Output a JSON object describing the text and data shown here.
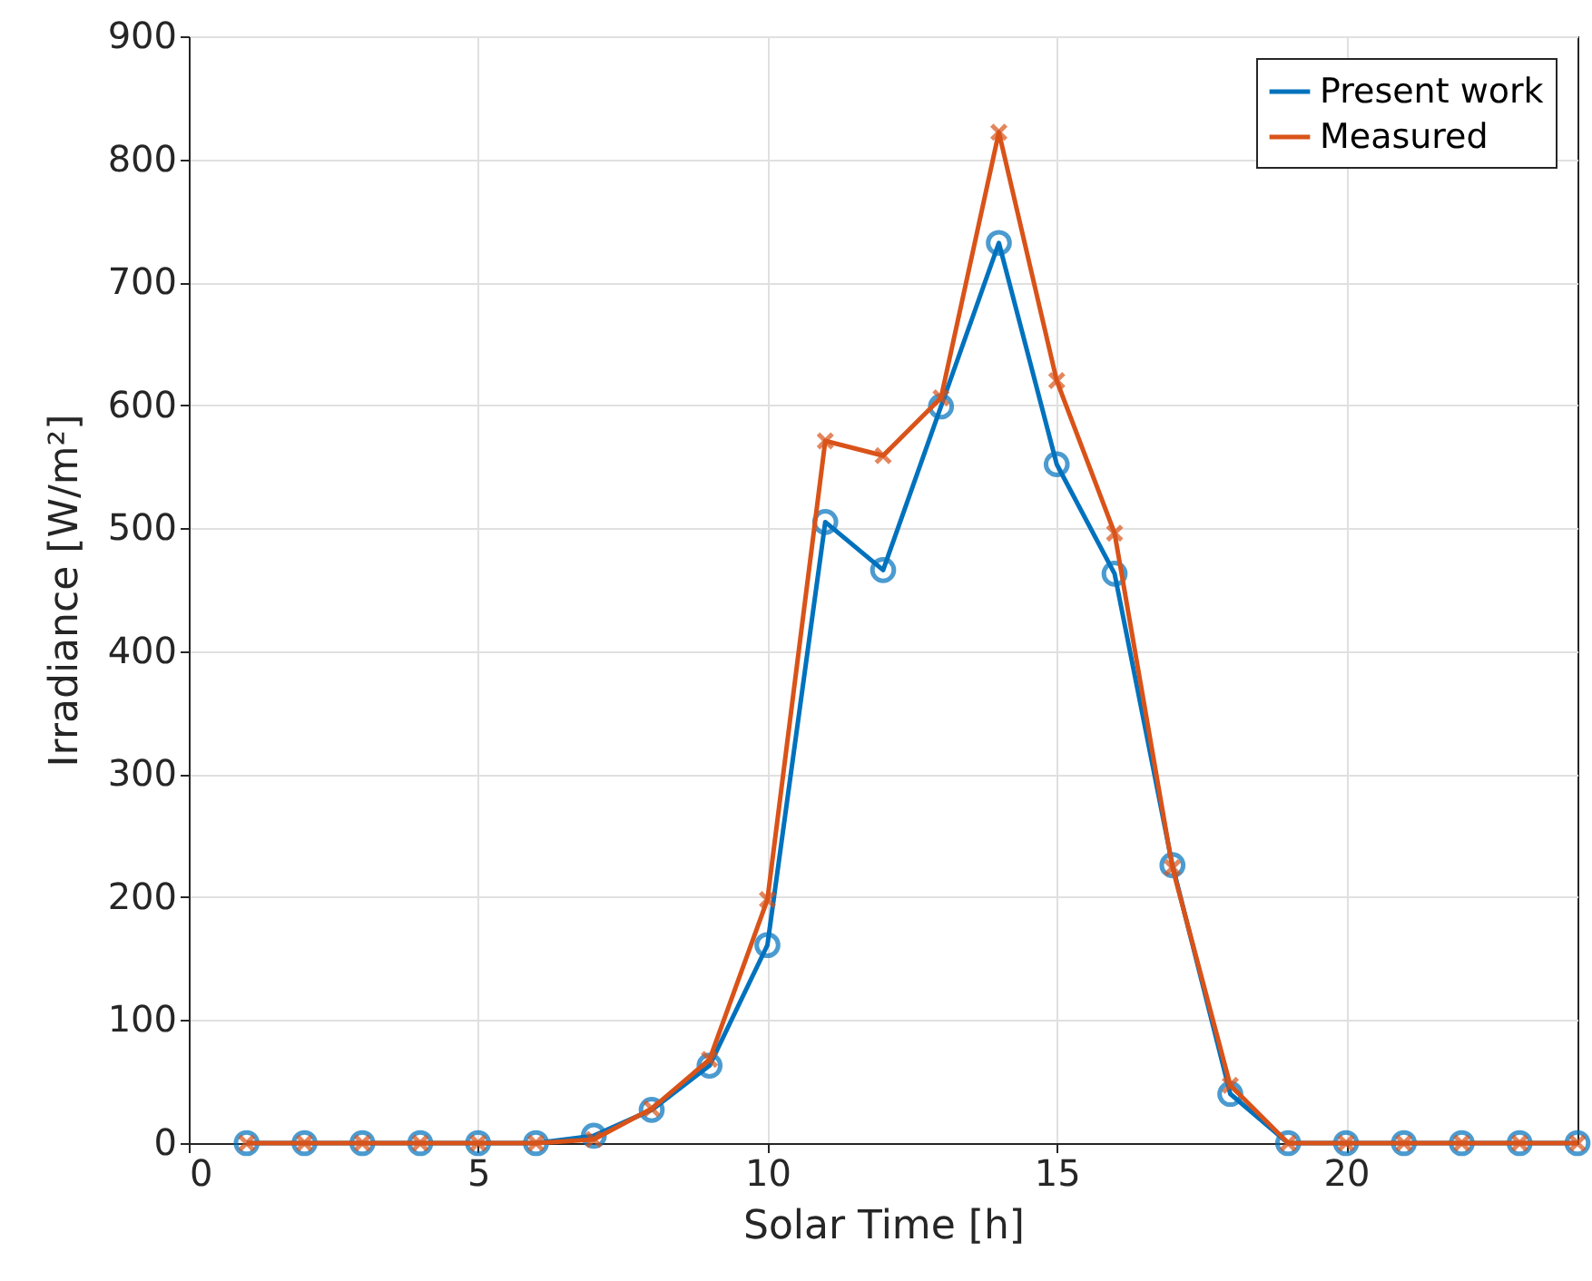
{
  "chart_data": {
    "type": "line",
    "xlabel": "Solar Time [h]",
    "ylabel": "Irradiance [W/m²]",
    "x": [
      1,
      2,
      3,
      4,
      5,
      6,
      7,
      8,
      9,
      10,
      11,
      12,
      13,
      14,
      15,
      16,
      17,
      18,
      19,
      20,
      21,
      22,
      23,
      24
    ],
    "series": [
      {
        "name": "Present work",
        "color": "#0072bd",
        "marker": "circle",
        "values": [
          0,
          0,
          0,
          0,
          0,
          0,
          6,
          27,
          63,
          161,
          505,
          466,
          599,
          732,
          552,
          463,
          226,
          40,
          0,
          0,
          0,
          0,
          0,
          0
        ]
      },
      {
        "name": "Measured",
        "color": "#d95319",
        "marker": "cross",
        "values": [
          0,
          0,
          0,
          0,
          0,
          0,
          3,
          28,
          68,
          198,
          571,
          559,
          606,
          822,
          620,
          496,
          224,
          47,
          0,
          0,
          0,
          0,
          0,
          0
        ]
      }
    ],
    "xlim": [
      0,
      24
    ],
    "xticks": [
      0,
      5,
      10,
      15,
      20
    ],
    "ylim": [
      0,
      900
    ],
    "yticks": [
      0,
      100,
      200,
      300,
      400,
      500,
      600,
      700,
      800,
      900
    ],
    "grid": true,
    "legend": "top right",
    "line_style": "solid"
  }
}
